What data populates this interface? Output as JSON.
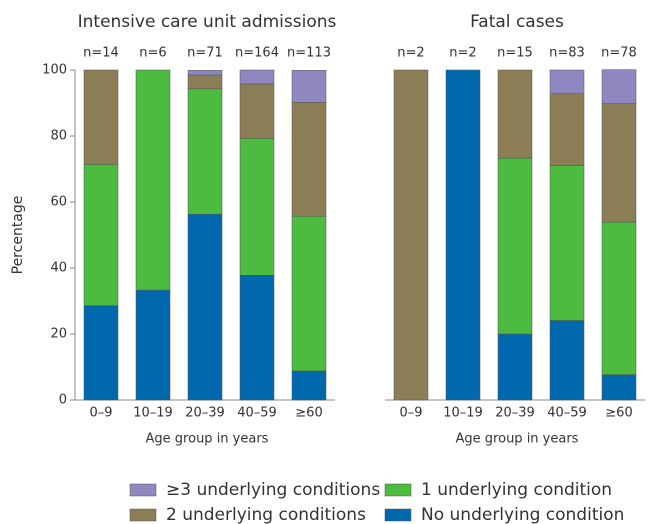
{
  "chart_data": [
    {
      "type": "stacked_bar",
      "title": "Intensive care unit admissions",
      "ylabel": "Percentage",
      "xlabel": "Age group in years",
      "categories": [
        "0–9",
        "10–19",
        "20–39",
        "40–59",
        "≥60"
      ],
      "sample_sizes": [
        "n=14",
        "n=6",
        "n=71",
        "n=164",
        "n=113"
      ],
      "ylim": [
        0,
        100
      ],
      "yticks": [
        0,
        20,
        40,
        60,
        80,
        100
      ],
      "series": [
        {
          "name": "No underlying condition",
          "color": "#0068ad",
          "values": [
            28.6,
            33.3,
            56.3,
            37.8,
            8.8
          ]
        },
        {
          "name": "1 underlying condition",
          "color": "#4cbb3f",
          "values": [
            42.8,
            66.7,
            38.0,
            41.5,
            46.9
          ]
        },
        {
          "name": "2 underlying conditions",
          "color": "#8b7e56",
          "values": [
            28.6,
            0,
            4.2,
            16.5,
            34.5
          ]
        },
        {
          "name": "≥3 underlying conditions",
          "color": "#8e87c0",
          "values": [
            0,
            0,
            1.4,
            4.2,
            9.7
          ]
        }
      ]
    },
    {
      "type": "stacked_bar",
      "title": "Fatal cases",
      "xlabel": "Age group in years",
      "categories": [
        "0–9",
        "10–19",
        "20–39",
        "40–59",
        "≥60"
      ],
      "sample_sizes": [
        "n=2",
        "n=2",
        "n=15",
        "n=83",
        "n=78"
      ],
      "ylim": [
        0,
        100
      ],
      "series": [
        {
          "color": "#0068ad",
          "values": [
            0,
            100,
            20.0,
            24.1,
            7.7
          ]
        },
        {
          "color": "#4cbb3f",
          "values": [
            0,
            0,
            53.3,
            47.0,
            46.2
          ]
        },
        {
          "color": "#8b7e56",
          "values": [
            100,
            0,
            26.7,
            21.7,
            35.9
          ]
        },
        {
          "color": "#8e87c0",
          "values": [
            0,
            0,
            0,
            7.2,
            10.3
          ]
        }
      ]
    }
  ]
}
